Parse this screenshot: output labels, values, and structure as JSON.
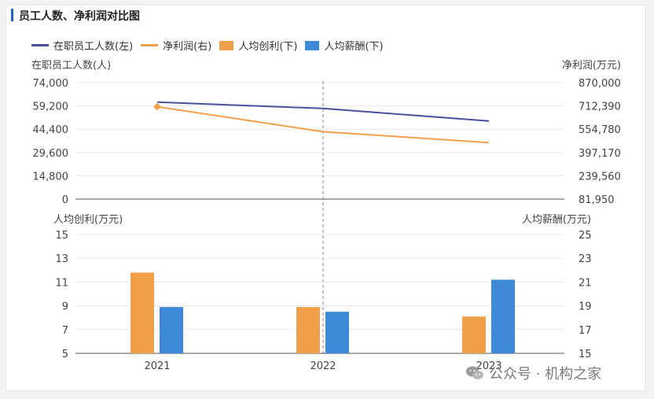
{
  "title": "员工人数、净利润对比图",
  "colors": {
    "accent": "#1f62d1",
    "employees": "#4b509c",
    "net_profit": "#f0a04b",
    "profit_per_capita": "#f0a04b",
    "salary_per_capita": "#3f8ad8"
  },
  "legend": [
    {
      "label": "在职员工人数(左)",
      "kind": "line",
      "color": "#4b509c"
    },
    {
      "label": "净利润(右)",
      "kind": "line",
      "color": "#f0a04b"
    },
    {
      "label": "人均创利(下)",
      "kind": "box",
      "color": "#f0a04b"
    },
    {
      "label": "人均薪酬(下)",
      "kind": "box",
      "color": "#3f8ad8"
    }
  ],
  "watermark": {
    "text": "公众号 · 机构之家",
    "icon": "wechat-icon"
  },
  "chart_data": [
    {
      "type": "line",
      "categories": [
        "2021",
        "2022",
        "2023"
      ],
      "series": [
        {
          "name": "在职员工人数(左)",
          "axis": "left",
          "values": [
            61600,
            57600,
            49600
          ]
        },
        {
          "name": "净利润(右)",
          "axis": "right",
          "values": [
            707000,
            538000,
            464000
          ]
        }
      ],
      "ylabel_left": "在职员工人数(人)",
      "ylabel_right": "净利润(万元)",
      "ylim_left": [
        0,
        74000
      ],
      "ylim_right": [
        81950,
        870000
      ],
      "yticks_left": [
        "74,000",
        "59,200",
        "44,400",
        "29,600",
        "14,800",
        "0"
      ],
      "yticks_right": [
        "870,000",
        "712,390",
        "554,780",
        "397,170",
        "239,560",
        "81,950"
      ],
      "grid": true
    },
    {
      "type": "bar",
      "categories": [
        "2021",
        "2022",
        "2023"
      ],
      "series": [
        {
          "name": "人均创利(下)",
          "axis": "left",
          "values": [
            11.8,
            8.9,
            8.1
          ]
        },
        {
          "name": "人均薪酬(下)",
          "axis": "right",
          "values": [
            18.9,
            18.5,
            21.2
          ]
        }
      ],
      "ylabel_left": "人均创利(万元)",
      "ylabel_right": "人均薪酬(万元)",
      "ylim_left": [
        5,
        15
      ],
      "ylim_right": [
        15,
        25
      ],
      "yticks_left": [
        "15",
        "13",
        "11",
        "9",
        "7",
        "5"
      ],
      "yticks_right": [
        "25",
        "23",
        "21",
        "19",
        "17",
        "15"
      ],
      "xticks": [
        "2021",
        "2022",
        "2023"
      ],
      "grid": true
    }
  ]
}
